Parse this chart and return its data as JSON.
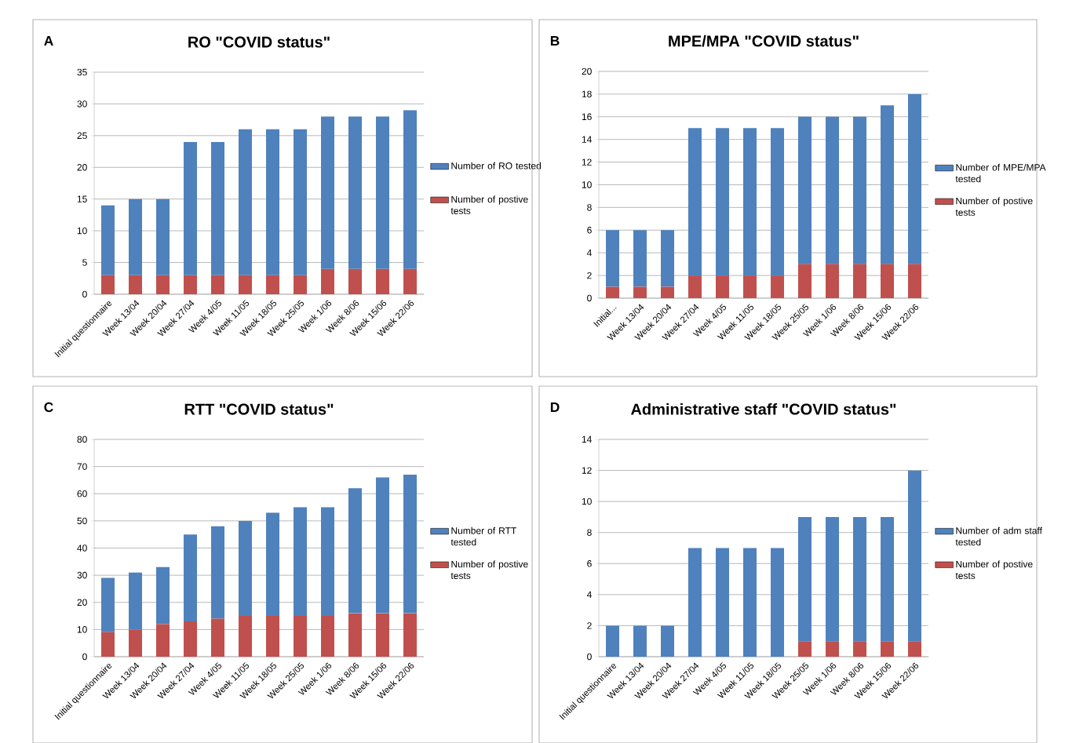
{
  "chart_data": [
    {
      "type": "bar",
      "stacked": true,
      "title": "RO \"COVID status\"",
      "annotations": [
        "A"
      ],
      "categories": [
        "Initial questionnaire",
        "Week 13/04",
        "Week 20/04",
        "Week 27/04",
        "Week 4/05",
        "Week 11/05",
        "Week 18/05",
        "Week 25/05",
        "Week 1/06",
        "Week 8/06",
        "Week 15/06",
        "Week 22/06"
      ],
      "series": [
        {
          "name": "Number of postive tests",
          "color": "#c0504d",
          "values": [
            3,
            3,
            3,
            3,
            3,
            3,
            3,
            3,
            4,
            4,
            4,
            4
          ]
        },
        {
          "name": "Number of RO tested",
          "color": "#4f81bd",
          "values": [
            11,
            12,
            12,
            21,
            21,
            23,
            23,
            23,
            24,
            24,
            24,
            25
          ]
        }
      ],
      "ylim": [
        0,
        35
      ],
      "yticks": [
        0,
        5,
        10,
        15,
        20,
        25,
        30,
        35
      ],
      "grid": "y",
      "legend": "right"
    },
    {
      "type": "bar",
      "stacked": true,
      "title": "MPE/MPA \"COVID status\"",
      "annotations": [
        "B"
      ],
      "categories": [
        "Initial...",
        "Week 13/04",
        "Week 20/04",
        "Week 27/04",
        "Week 4/05",
        "Week 11/05",
        "Week 18/05",
        "Week 25/05",
        "Week 1/06",
        "Week 8/06",
        "Week 15/06",
        "Week 22/06"
      ],
      "series": [
        {
          "name": "Number of postive tests",
          "color": "#c0504d",
          "values": [
            1,
            1,
            1,
            2,
            2,
            2,
            2,
            3,
            3,
            3,
            3,
            3
          ]
        },
        {
          "name": "Number of MPE/MPA tested",
          "color": "#4f81bd",
          "values": [
            5,
            5,
            5,
            13,
            13,
            13,
            13,
            13,
            13,
            13,
            14,
            15
          ]
        }
      ],
      "ylim": [
        0,
        20
      ],
      "yticks": [
        0,
        2,
        4,
        6,
        8,
        10,
        12,
        14,
        16,
        18,
        20
      ],
      "grid": "y",
      "legend": "right"
    },
    {
      "type": "bar",
      "stacked": true,
      "title": "RTT \"COVID status\"",
      "annotations": [
        "C"
      ],
      "categories": [
        "Initial questionnaire",
        "Week 13/04",
        "Week 20/04",
        "Week 27/04",
        "Week 4/05",
        "Week 11/05",
        "Week 18/05",
        "Week 25/05",
        "Week 1/06",
        "Week 8/06",
        "Week 15/06",
        "Week 22/06"
      ],
      "series": [
        {
          "name": "Number of postive tests",
          "color": "#c0504d",
          "values": [
            9,
            10,
            12,
            13,
            14,
            15,
            15,
            15,
            15,
            16,
            16,
            16
          ]
        },
        {
          "name": "Number of RTT tested",
          "color": "#4f81bd",
          "values": [
            20,
            21,
            21,
            32,
            34,
            35,
            38,
            40,
            40,
            46,
            50,
            51
          ]
        }
      ],
      "ylim": [
        0,
        80
      ],
      "yticks": [
        0,
        10,
        20,
        30,
        40,
        50,
        60,
        70,
        80
      ],
      "grid": "y",
      "legend": "right"
    },
    {
      "type": "bar",
      "stacked": true,
      "title": "Administrative staff \"COVID status\"",
      "annotations": [
        "D"
      ],
      "categories": [
        "Initial questionnaire",
        "Week 13/04",
        "Week 20/04",
        "Week 27/04",
        "Week 4/05",
        "Week 11/05",
        "Week 18/05",
        "Week 25/05",
        "Week 1/06",
        "Week 8/06",
        "Week 15/06",
        "Week 22/06"
      ],
      "series": [
        {
          "name": "Number of postive tests",
          "color": "#c0504d",
          "values": [
            0,
            0,
            0,
            0,
            0,
            0,
            0,
            1,
            1,
            1,
            1,
            1
          ]
        },
        {
          "name": "Number of adm staff tested",
          "color": "#4f81bd",
          "values": [
            2,
            2,
            2,
            7,
            7,
            7,
            7,
            8,
            8,
            8,
            8,
            11
          ]
        }
      ],
      "ylim": [
        0,
        14
      ],
      "yticks": [
        0,
        2,
        4,
        6,
        8,
        10,
        12,
        14
      ],
      "grid": "y",
      "legend": "right"
    }
  ]
}
